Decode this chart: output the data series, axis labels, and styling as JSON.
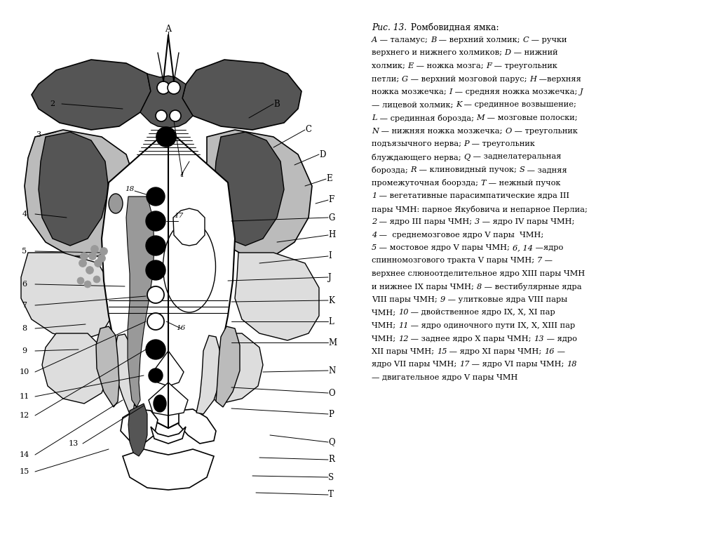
{
  "title_italic": "Рис. 13.",
  "title_normal": " Ромбовидная ямка:",
  "bg_color": "#ffffff",
  "line_color": "#000000",
  "gray_dark": "#555555",
  "gray_mid": "#999999",
  "gray_light": "#bbbbbb",
  "gray_fill": "#cccccc",
  "gray_lighter": "#dddddd",
  "legend_lines": [
    [
      "A",
      " — таламус; ",
      "B",
      " — верхний холмик; ",
      "C",
      " — ручки"
    ],
    [
      "верхнего и нижнего холмиков; ",
      "D",
      " — нижний"
    ],
    [
      "холмик; ",
      "E",
      " — ножка мозга; ",
      "F",
      " — треугольник"
    ],
    [
      "петли; ",
      "G",
      " — верхний мозговой парус; ",
      "H",
      " —верхняя"
    ],
    [
      "ножка мозжечка; ",
      "I",
      " — средняя ножка мозжечка; ",
      "J"
    ],
    [
      "— лицевой холмик; ",
      "K",
      " — срединное возвышение;"
    ],
    [
      "L",
      " — срединная борозда; ",
      "M",
      " — мозговые полоски;"
    ],
    [
      "N",
      " — нижняя ножка мозжечка; ",
      "O",
      " — треугольник"
    ],
    [
      "подъязычного нерва; ",
      "P",
      " — треугольник"
    ],
    [
      "блуждающего нерва; ",
      "Q",
      " — заднелатеральная"
    ],
    [
      "борозда; ",
      "R",
      " — клиновидный пучок; ",
      "S",
      " — задняя"
    ],
    [
      "промежуточная боорзда; ",
      "T",
      " — нежный пучок"
    ],
    [
      "1",
      " — вегетативные парасимпатические ядра III"
    ],
    [
      "пары ЧМН: парное Якубовича и непарное Перлиа;"
    ],
    [
      "2",
      " — ядро III пары ЧМН; ",
      "3",
      " — ядро IV пары ЧМН;"
    ],
    [
      "4",
      " —  среднемозговое ядро V пары  ЧМН;"
    ],
    [
      "5",
      " — мостовое ядро V пары ЧМН; ",
      "6, 14",
      " —ядро"
    ],
    [
      "спинномозгового тракта V пары ЧМН; ",
      "7",
      " —"
    ],
    [
      "верхнее слюноотделительное ядро XIII пары ЧМН"
    ],
    [
      "и нижнее IX пары ЧМН; ",
      "8",
      " — вестибулярные ядра"
    ],
    [
      "VIII пары ЧМН; ",
      "9",
      " — улитковые ядра VIII пары"
    ],
    [
      "ЧМН; ",
      "10",
      " — двойственное ядро IX, X, XI пар"
    ],
    [
      "ЧМН; ",
      "11",
      " — ядро одиночного пути IX, X, XIII пар"
    ],
    [
      "ЧМН; ",
      "12",
      " — заднее ядро X пары ЧМН; ",
      "13",
      " — ядро"
    ],
    [
      "XII пары ЧМН; ",
      "15",
      " — ядро XI пары ЧМН; ",
      "16",
      " —"
    ],
    [
      "ядро VII пары ЧМН; ",
      "17",
      " — ядро VI пары ЧМН; ",
      "18"
    ],
    [
      "— двигательное ядро V пары ЧМН"
    ]
  ]
}
